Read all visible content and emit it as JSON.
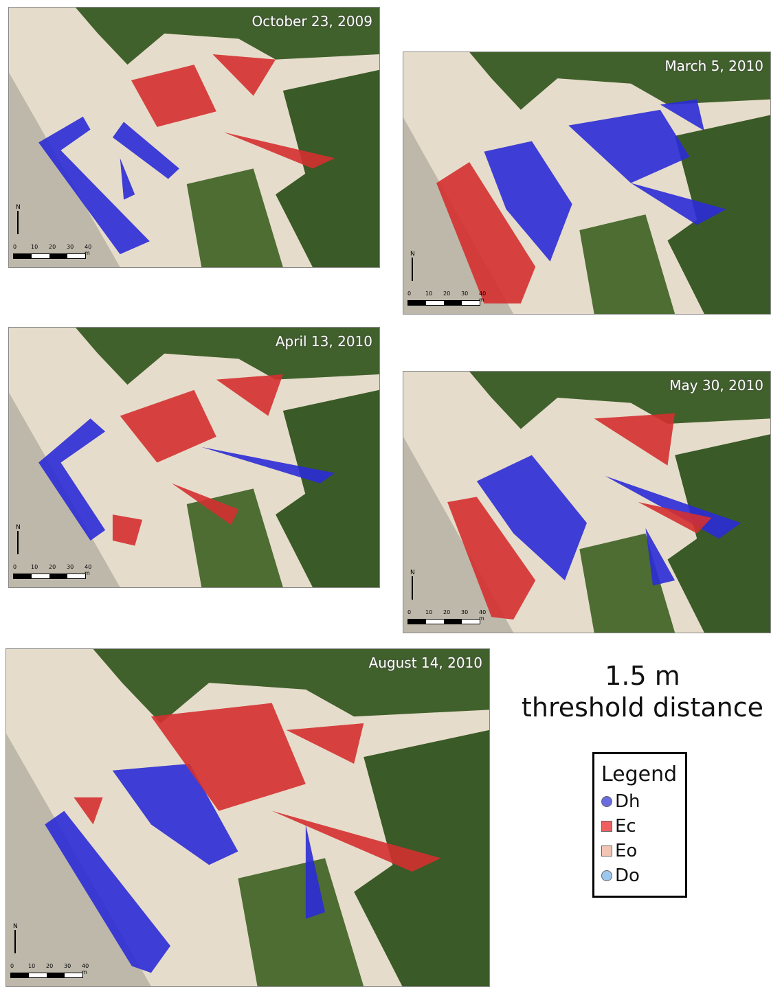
{
  "panels": [
    {
      "date": "October 23, 2009",
      "north": "N",
      "scale_labels": [
        "0",
        "10",
        "20",
        "30",
        "40 m"
      ]
    },
    {
      "date": "March 5, 2010",
      "north": "N",
      "scale_labels": [
        "0",
        "10",
        "20",
        "30",
        "40 m"
      ]
    },
    {
      "date": "April 13, 2010",
      "north": "N",
      "scale_labels": [
        "0",
        "10",
        "20",
        "30",
        "40 m"
      ]
    },
    {
      "date": "May 30, 2010",
      "north": "N",
      "scale_labels": [
        "0",
        "10",
        "20",
        "30",
        "40 m"
      ]
    },
    {
      "date": "August 14, 2010",
      "north": "N",
      "scale_labels": [
        "0",
        "10",
        "20",
        "30",
        "40 m"
      ]
    }
  ],
  "caption": {
    "line1": "1.5 m",
    "line2": "threshold distance"
  },
  "legend": {
    "title": "Legend",
    "items": [
      {
        "label": "Dh",
        "marker": "circle",
        "color": "#6b6be0"
      },
      {
        "label": "Ec",
        "marker": "square",
        "color": "#ee6060"
      },
      {
        "label": "Eo",
        "marker": "square",
        "color": "#f2c4b4"
      },
      {
        "label": "Do",
        "marker": "circle",
        "color": "#9cc8ee"
      }
    ]
  }
}
